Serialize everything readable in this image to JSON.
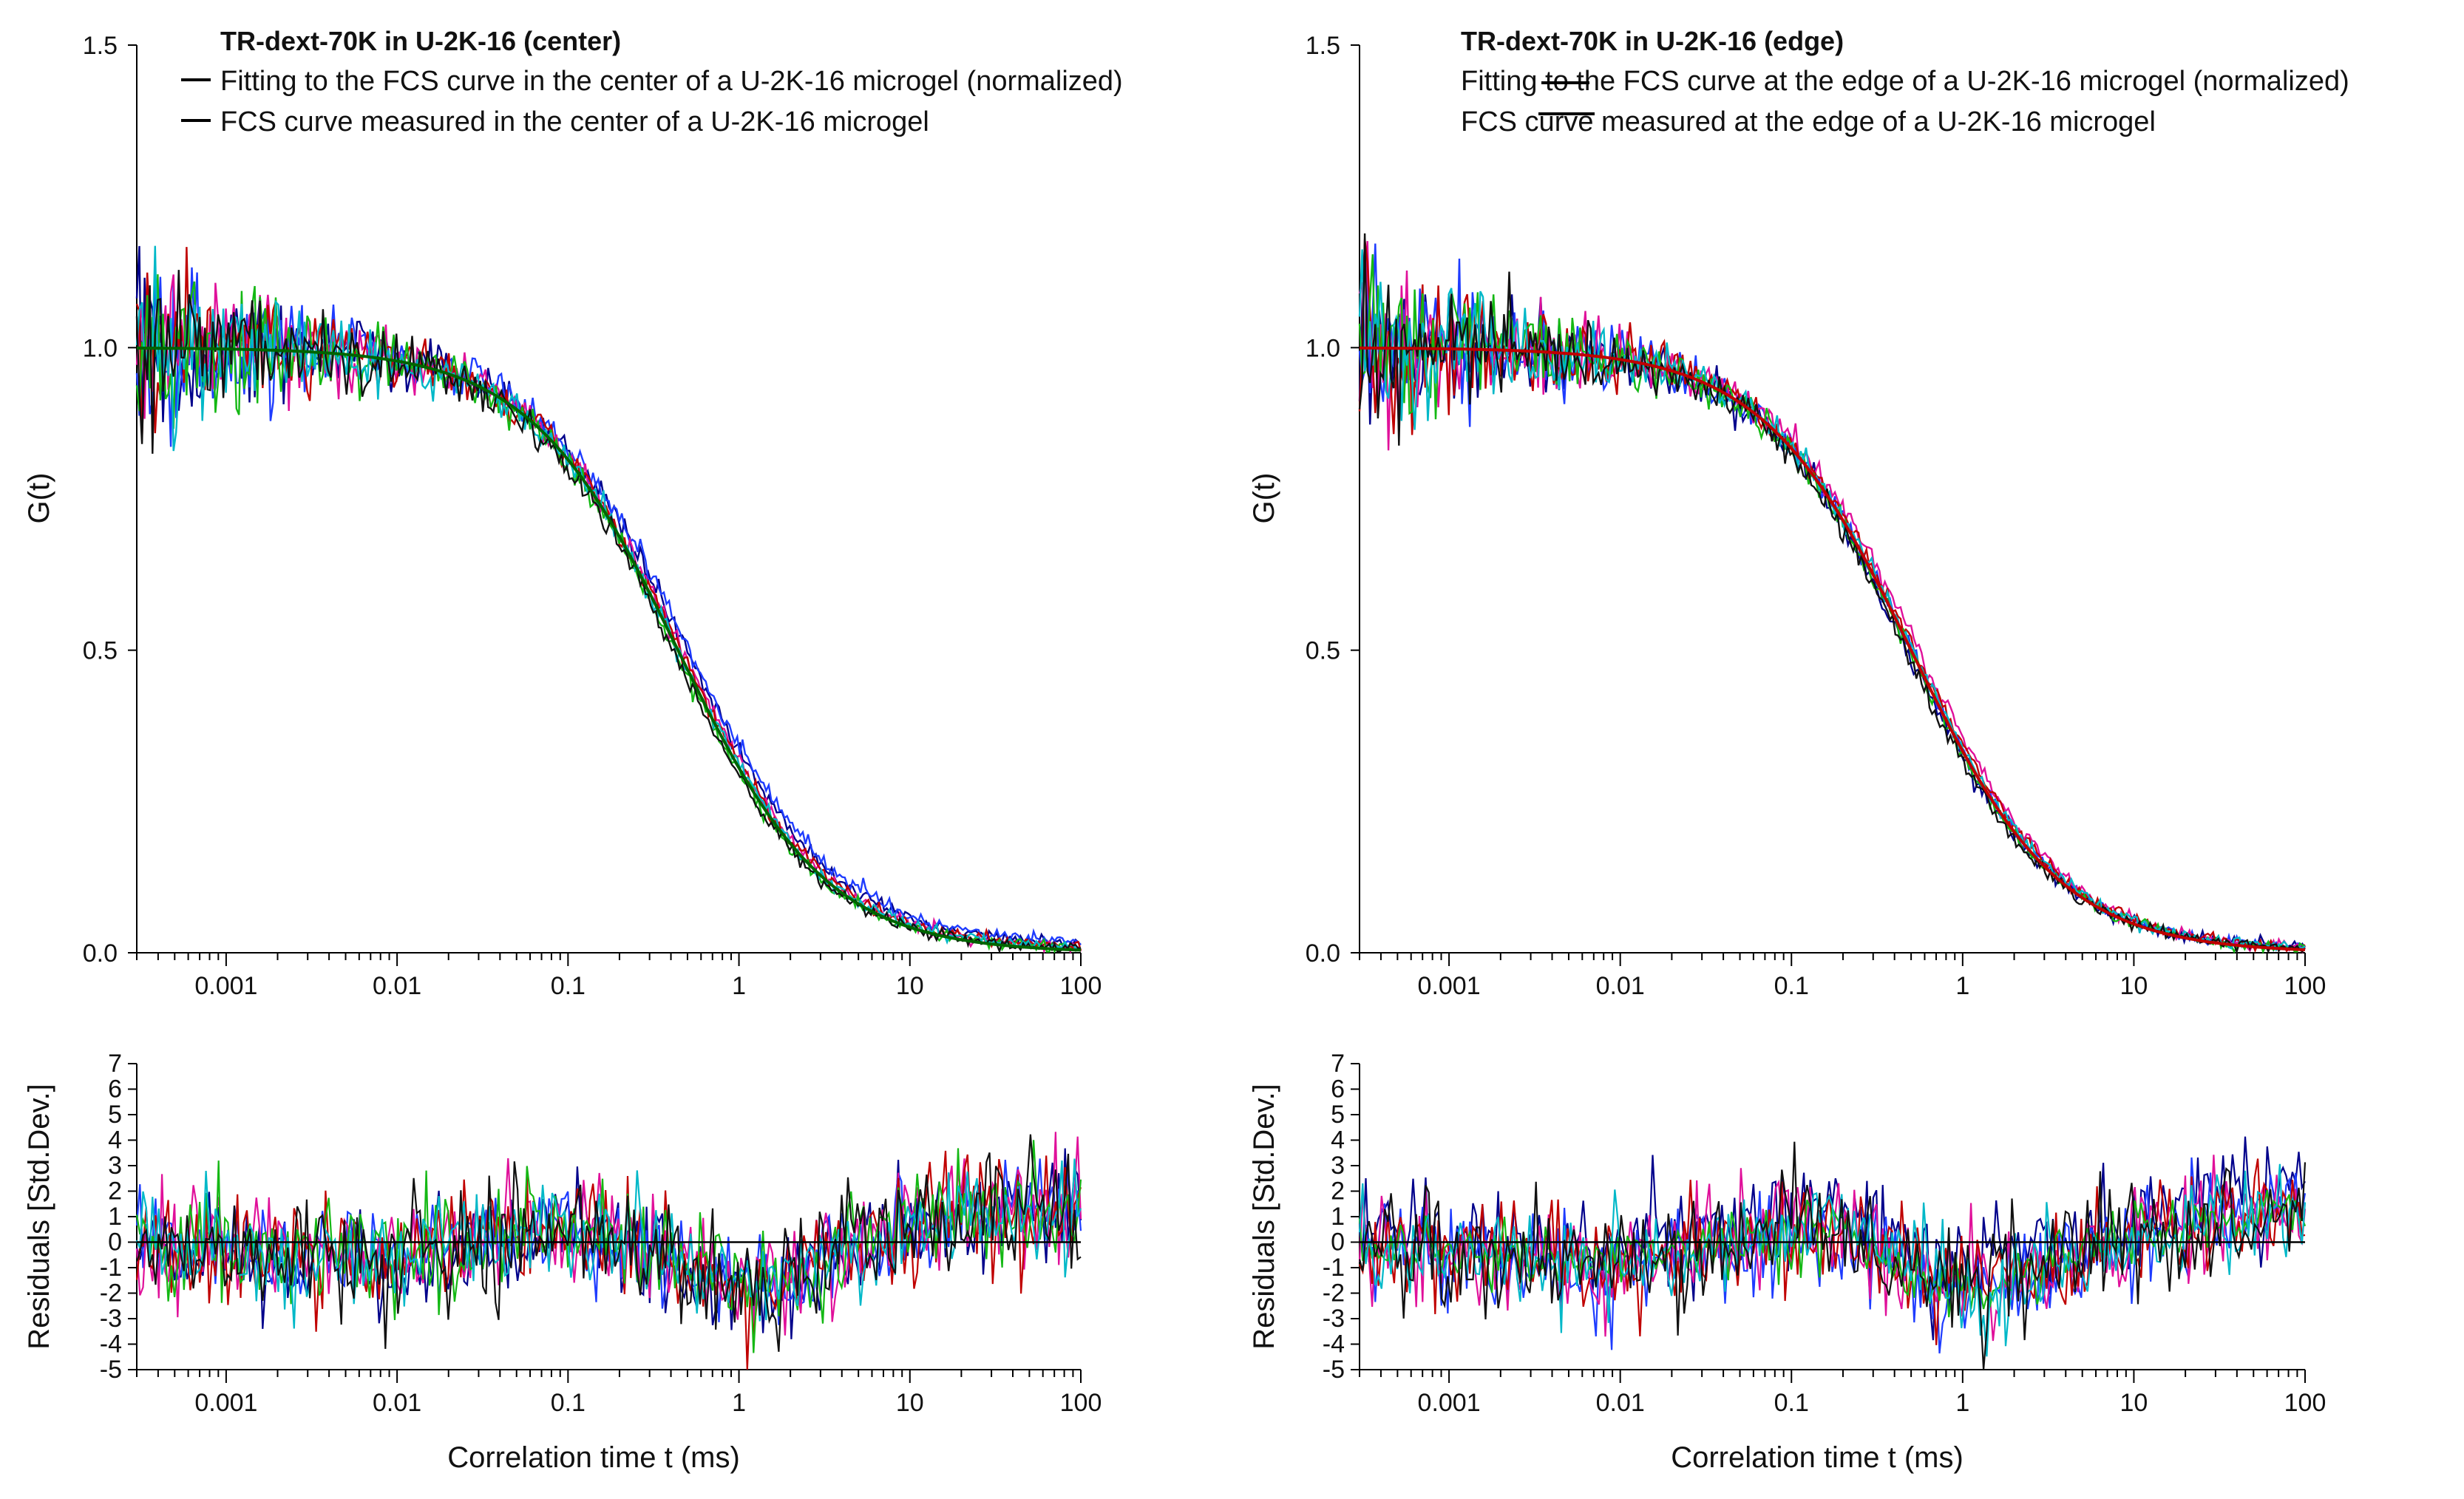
{
  "figure": {
    "panels": [
      {
        "id": "center",
        "legend_title": "TR-dext-70K in U-2K-16 (center)",
        "legend_entries": [
          "Fitting to the FCS curve in the center of a U-2K-16 microgel (normalized)",
          "FCS curve measured in the center of a U-2K-16 microgel"
        ]
      },
      {
        "id": "edge",
        "legend_title": "TR-dext-70K in U-2K-16 (edge)",
        "legend_entries": [
          "Fitting to the FCS curve at the  edge of a U-2K-16 microgel (normalized)",
          "FCS curve measured at the edge of a U-2K-16 microgel"
        ]
      }
    ]
  },
  "chart_data": [
    {
      "type": "line",
      "panel": "center",
      "subplot": "G(t)",
      "title": "TR-dext-70K in U-2K-16 (center)",
      "xlabel": "Correlation time t (ms)",
      "ylabel": "G(t)",
      "xscale": "log",
      "xlim": [
        0.0003,
        100
      ],
      "ylim": [
        0,
        1.5
      ],
      "x_ticks": [
        "0.001",
        "0.01",
        "0.1",
        "1",
        "10",
        "100"
      ],
      "y_ticks": [
        "0.0",
        "0.5",
        "1.0",
        "1.5"
      ],
      "fit_model": "1 / (1 + t / tau)",
      "series": [
        {
          "name": "Fitting (normalized)",
          "style": "fit",
          "color": "#006400",
          "tau_ms": 0.44,
          "offset": 0
        },
        {
          "name": "FCS measured 1",
          "color": "#00008b",
          "tau_ms": 0.48,
          "offset": 0.012
        },
        {
          "name": "FCS measured 2",
          "color": "#1e3cff",
          "tau_ms": 0.5,
          "offset": 0.015
        },
        {
          "name": "FCS measured 3",
          "color": "#e0109a",
          "tau_ms": 0.46,
          "offset": 0.004
        },
        {
          "name": "FCS measured 4",
          "color": "#c00000",
          "tau_ms": 0.45,
          "offset": 0.006
        },
        {
          "name": "FCS measured 5",
          "color": "#14b814",
          "tau_ms": 0.42,
          "offset": 0.003
        },
        {
          "name": "FCS measured 6",
          "color": "#00b8c8",
          "tau_ms": 0.44,
          "offset": 0.005
        },
        {
          "name": "FCS measured 7",
          "color": "#111111",
          "tau_ms": 0.41,
          "offset": 0.002
        }
      ]
    },
    {
      "type": "line",
      "panel": "center",
      "subplot": "residuals",
      "xlabel": "Correlation time t (ms)",
      "ylabel": "Residuals [Std.Dev.]",
      "xscale": "log",
      "xlim": [
        0.0003,
        100
      ],
      "ylim": [
        -5,
        7
      ],
      "x_ticks": [
        "0.001",
        "0.01",
        "0.1",
        "1",
        "10",
        "100"
      ],
      "y_ticks": [
        "7",
        "6",
        "5",
        "4",
        "3",
        "2",
        "1",
        "0",
        "-1",
        "-2",
        "-3",
        "-4",
        "-5"
      ],
      "zero_line": 0,
      "trend_anchors_log10t": [
        -3.52,
        -2.5,
        -2.0,
        -1.0,
        -0.25,
        0.1,
        0.8,
        1.5,
        2.0
      ],
      "trend_anchors_value": [
        0.2,
        -0.3,
        -0.4,
        0.9,
        -0.8,
        -1.5,
        0.5,
        1.6,
        1.5
      ],
      "series": [
        {
          "name": "residual 1",
          "color": "#00008b",
          "noise_sd": 1.1
        },
        {
          "name": "residual 2",
          "color": "#1e3cff",
          "noise_sd": 1.0
        },
        {
          "name": "residual 3",
          "color": "#e0109a",
          "noise_sd": 1.1
        },
        {
          "name": "residual 4",
          "color": "#c00000",
          "noise_sd": 1.1
        },
        {
          "name": "residual 5",
          "color": "#14b814",
          "noise_sd": 1.0
        },
        {
          "name": "residual 6",
          "color": "#00b8c8",
          "noise_sd": 1.0
        },
        {
          "name": "residual 7",
          "color": "#111111",
          "noise_sd": 1.2
        }
      ]
    },
    {
      "type": "line",
      "panel": "edge",
      "subplot": "G(t)",
      "title": "TR-dext-70K in U-2K-16 (edge)",
      "xlabel": "Correlation time t (ms)",
      "ylabel": "G(t)",
      "xscale": "log",
      "xlim": [
        0.0003,
        100
      ],
      "ylim": [
        0,
        1.5
      ],
      "x_ticks": [
        "0.001",
        "0.01",
        "0.1",
        "1",
        "10",
        "100"
      ],
      "y_ticks": [
        "0.0",
        "0.5",
        "1.0",
        "1.5"
      ],
      "fit_model": "1 / (1 + t / tau)",
      "series": [
        {
          "name": "Fitting (normalized)",
          "style": "fit",
          "color": "#c00000",
          "tau_ms": 0.5,
          "offset": 0
        },
        {
          "name": "FCS measured 1",
          "color": "#00008b",
          "tau_ms": 0.47,
          "offset": 0.006
        },
        {
          "name": "FCS measured 2",
          "color": "#1e3cff",
          "tau_ms": 0.5,
          "offset": 0.005
        },
        {
          "name": "FCS measured 3",
          "color": "#e0109a",
          "tau_ms": 0.55,
          "offset": 0.004
        },
        {
          "name": "FCS measured 4",
          "color": "#c00000",
          "tau_ms": 0.52,
          "offset": 0.005
        },
        {
          "name": "FCS measured 5",
          "color": "#14b814",
          "tau_ms": 0.48,
          "offset": 0.003
        },
        {
          "name": "FCS measured 6",
          "color": "#00b8c8",
          "tau_ms": 0.51,
          "offset": 0.004
        },
        {
          "name": "FCS measured 7",
          "color": "#111111",
          "tau_ms": 0.46,
          "offset": 0.003
        }
      ]
    },
    {
      "type": "line",
      "panel": "edge",
      "subplot": "residuals",
      "xlabel": "Correlation time t (ms)",
      "ylabel": "Residuals [Std.Dev.]",
      "xscale": "log",
      "xlim": [
        0.0003,
        100
      ],
      "ylim": [
        -5,
        7
      ],
      "x_ticks": [
        "0.001",
        "0.01",
        "0.1",
        "1",
        "10",
        "100"
      ],
      "y_ticks": [
        "7",
        "6",
        "5",
        "4",
        "3",
        "2",
        "1",
        "0",
        "-1",
        "-2",
        "-3",
        "-4",
        "-5"
      ],
      "zero_line": 0,
      "trend_anchors_log10t": [
        -3.52,
        -2.5,
        -2.0,
        -1.0,
        -0.7,
        -0.2,
        0.1,
        0.8,
        1.5,
        2.0
      ],
      "trend_anchors_value": [
        0.3,
        -0.4,
        -0.5,
        0.7,
        1.0,
        -1.3,
        -1.6,
        0.2,
        1.4,
        1.6
      ],
      "series": [
        {
          "name": "residual 1",
          "color": "#00008b",
          "noise_sd": 1.0
        },
        {
          "name": "residual 2",
          "color": "#1e3cff",
          "noise_sd": 1.0
        },
        {
          "name": "residual 3",
          "color": "#e0109a",
          "noise_sd": 1.1
        },
        {
          "name": "residual 4",
          "color": "#c00000",
          "noise_sd": 1.0
        },
        {
          "name": "residual 5",
          "color": "#14b814",
          "noise_sd": 0.6
        },
        {
          "name": "residual 6",
          "color": "#00b8c8",
          "noise_sd": 1.0
        },
        {
          "name": "residual 7",
          "color": "#111111",
          "noise_sd": 1.1
        }
      ]
    }
  ]
}
